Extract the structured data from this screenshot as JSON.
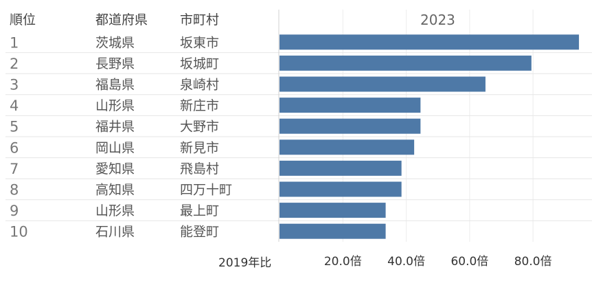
{
  "chart_data": {
    "type": "bar",
    "orientation": "horizontal",
    "title": "2023",
    "columns": [
      "順位",
      "都道府県",
      "市町村"
    ],
    "rows": [
      {
        "rank": "1",
        "prefecture": "茨城県",
        "municipality": "坂東市",
        "value": 94.5
      },
      {
        "rank": "2",
        "prefecture": "長野県",
        "municipality": "坂城町",
        "value": 79.5
      },
      {
        "rank": "3",
        "prefecture": "福島県",
        "municipality": "泉崎村",
        "value": 65.0
      },
      {
        "rank": "4",
        "prefecture": "山形県",
        "municipality": "新庄市",
        "value": 44.5
      },
      {
        "rank": "5",
        "prefecture": "福井県",
        "municipality": "大野市",
        "value": 44.5
      },
      {
        "rank": "6",
        "prefecture": "岡山県",
        "municipality": "新見市",
        "value": 42.5
      },
      {
        "rank": "7",
        "prefecture": "愛知県",
        "municipality": "飛島村",
        "value": 38.5
      },
      {
        "rank": "8",
        "prefecture": "高知県",
        "municipality": "四万十町",
        "value": 38.5
      },
      {
        "rank": "9",
        "prefecture": "山形県",
        "municipality": "最上町",
        "value": 33.5
      },
      {
        "rank": "10",
        "prefecture": "石川県",
        "municipality": "能登町",
        "value": 33.5
      }
    ],
    "xlabel": "2019年比",
    "xlim": [
      0,
      96
    ],
    "xticks": [
      20,
      40,
      60,
      80
    ],
    "xtick_labels": [
      "20.0倍",
      "40.0倍",
      "60.0倍",
      "80.0倍"
    ],
    "grid": "vertical",
    "bar_color": "#4e79a7"
  }
}
